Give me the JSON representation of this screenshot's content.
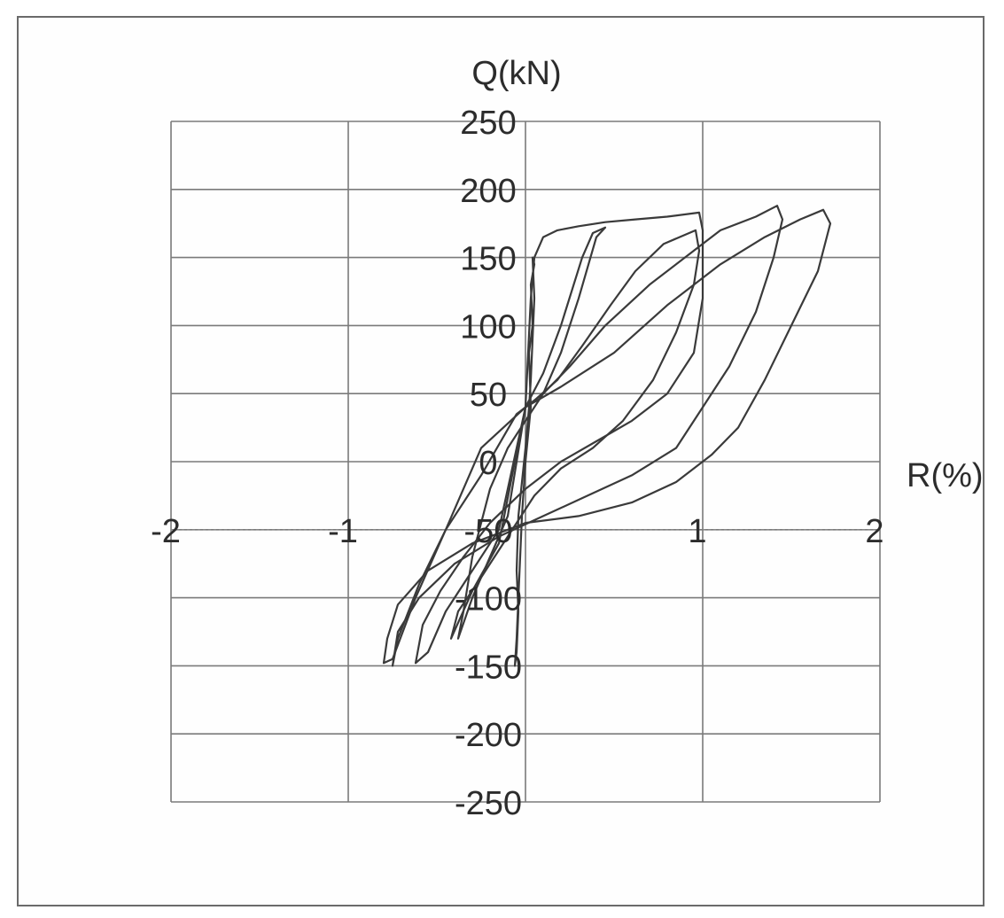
{
  "chart_data": {
    "type": "line",
    "xlabel": "R(%)",
    "ylabel": "Q(kN)",
    "xlim": [
      -2,
      2
    ],
    "ylim": [
      -250,
      250
    ],
    "x_ticks": [
      -2,
      -1,
      0,
      1,
      2
    ],
    "y_ticks": [
      -250,
      -200,
      -150,
      -100,
      -50,
      0,
      50,
      100,
      150,
      200,
      250
    ],
    "x_tick_labels": [
      "-2",
      "-1",
      "",
      "1",
      "2"
    ],
    "y_tick_labels": [
      "-250",
      "-200",
      "-150",
      "-100",
      "-50",
      "0",
      "50",
      "100",
      "150",
      "200",
      "250"
    ],
    "grid": true,
    "line_color": "#3a3a3a",
    "series": [
      {
        "x": [
          0.0,
          0.03,
          0.02,
          0.04,
          0.03,
          0.05,
          0.04,
          0.05,
          0.04,
          0.03,
          0.02,
          0.0,
          -0.04,
          -0.05,
          -0.04,
          -0.05,
          -0.06,
          -0.05,
          -0.04,
          -0.03,
          -0.02,
          0.0
        ],
        "y": [
          0,
          40,
          80,
          100,
          130,
          145,
          150,
          120,
          90,
          60,
          40,
          10,
          -40,
          -80,
          -110,
          -140,
          -150,
          -130,
          -100,
          -70,
          -40,
          0
        ]
      },
      {
        "x": [
          0.0,
          0.1,
          0.2,
          0.32,
          0.38,
          0.45,
          0.4,
          0.3,
          0.2,
          0.1,
          0.0,
          -0.1,
          -0.2,
          -0.3,
          -0.35,
          -0.38,
          -0.3,
          -0.2,
          -0.1,
          0.0
        ],
        "y": [
          40,
          65,
          100,
          150,
          168,
          172,
          165,
          120,
          80,
          50,
          30,
          10,
          -20,
          -70,
          -110,
          -130,
          -100,
          -70,
          -40,
          40
        ]
      },
      {
        "x": [
          0.0,
          0.05,
          0.18,
          0.32,
          0.48,
          0.62,
          0.78,
          0.96,
          0.98,
          0.95,
          0.85,
          0.72,
          0.55,
          0.38,
          0.2,
          0.05,
          -0.1,
          -0.25,
          -0.38,
          -0.42,
          -0.3,
          -0.15,
          0.0
        ],
        "y": [
          40,
          45,
          60,
          85,
          115,
          140,
          160,
          170,
          155,
          130,
          95,
          60,
          30,
          10,
          -5,
          -25,
          -55,
          -85,
          -110,
          -130,
          -95,
          -60,
          40
        ]
      },
      {
        "x": [
          0.0,
          0.03,
          0.05,
          0.1,
          0.18,
          0.3,
          0.45,
          0.62,
          0.8,
          0.98,
          1.0,
          1.0,
          0.95,
          0.8,
          0.6,
          0.4,
          0.2,
          0.0,
          -0.2,
          -0.35,
          -0.48,
          -0.58,
          -0.62,
          -0.55,
          -0.45,
          -0.3,
          -0.15,
          0.0
        ],
        "y": [
          40,
          120,
          150,
          165,
          170,
          173,
          176,
          178,
          180,
          183,
          170,
          120,
          80,
          50,
          30,
          15,
          0,
          -20,
          -45,
          -70,
          -95,
          -120,
          -148,
          -140,
          -110,
          -80,
          -50,
          40
        ]
      },
      {
        "x": [
          0.0,
          0.1,
          0.25,
          0.45,
          0.7,
          0.95,
          1.1,
          1.3,
          1.42,
          1.45,
          1.4,
          1.3,
          1.15,
          1.0,
          0.85,
          0.6,
          0.35,
          0.1,
          -0.15,
          -0.4,
          -0.6,
          -0.72,
          -0.75,
          -0.72,
          -0.6,
          -0.45,
          -0.25,
          -0.05,
          0.0
        ],
        "y": [
          40,
          50,
          70,
          100,
          130,
          155,
          170,
          180,
          188,
          178,
          150,
          110,
          70,
          40,
          10,
          -10,
          -25,
          -40,
          -55,
          -75,
          -100,
          -125,
          -150,
          -130,
          -90,
          -50,
          -10,
          35,
          40
        ]
      },
      {
        "x": [
          0.0,
          0.2,
          0.5,
          0.8,
          1.1,
          1.35,
          1.55,
          1.68,
          1.72,
          1.65,
          1.5,
          1.35,
          1.2,
          1.05,
          0.85,
          0.6,
          0.3,
          0.0,
          -0.3,
          -0.55,
          -0.72,
          -0.78,
          -0.8,
          -0.75,
          -0.62,
          -0.45,
          -0.25,
          0.0
        ],
        "y": [
          40,
          55,
          80,
          115,
          145,
          165,
          178,
          185,
          175,
          140,
          100,
          60,
          25,
          5,
          -15,
          -30,
          -40,
          -45,
          -60,
          -80,
          -105,
          -130,
          -148,
          -145,
          -100,
          -50,
          10,
          40
        ]
      }
    ]
  }
}
